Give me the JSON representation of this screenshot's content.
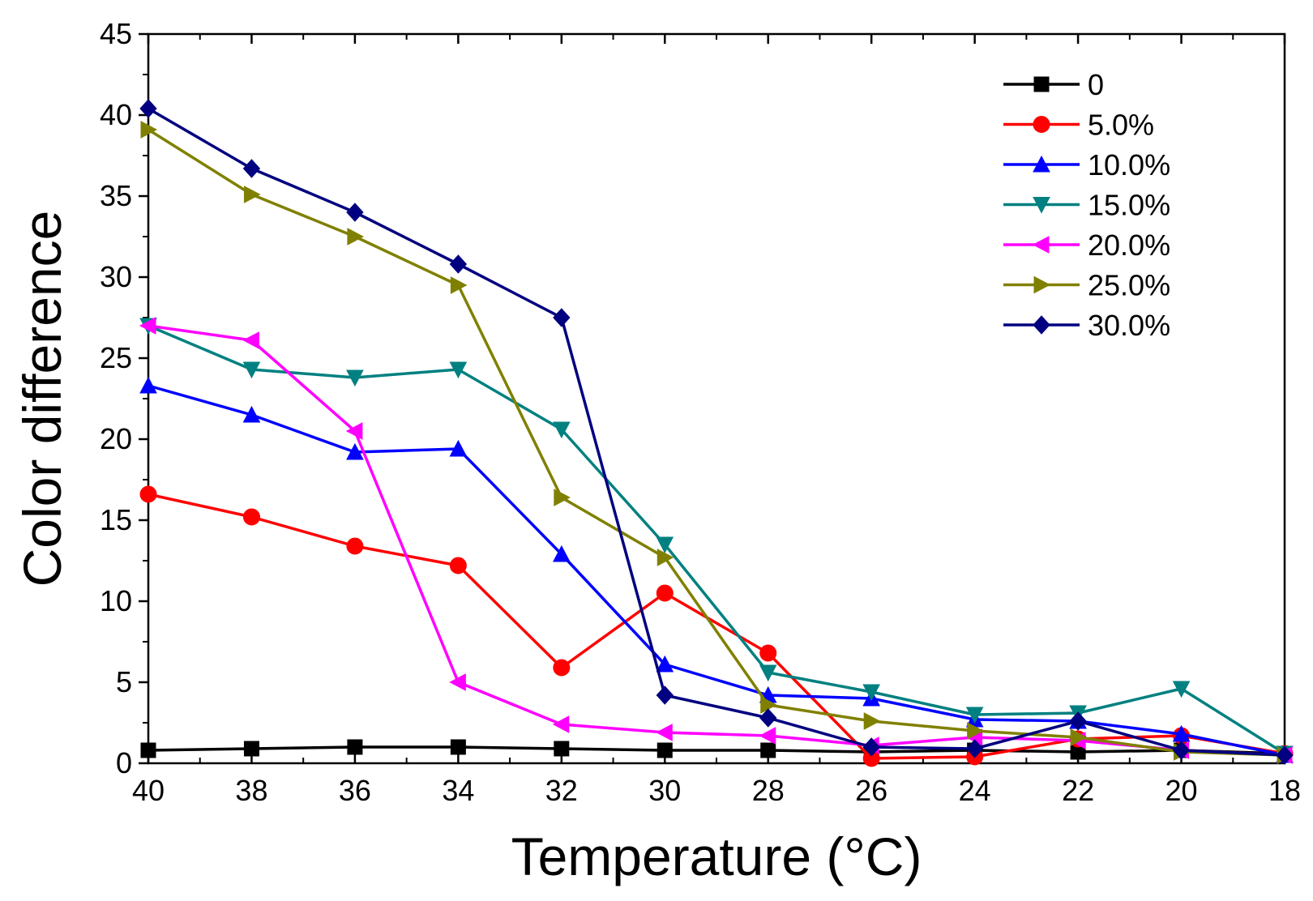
{
  "chart_data": {
    "type": "line",
    "title": "",
    "xlabel": "Temperature (°C)",
    "ylabel": "Color difference",
    "xlim": [
      40,
      18
    ],
    "ylim": [
      0,
      45
    ],
    "x_ticks": [
      40,
      38,
      36,
      34,
      32,
      30,
      28,
      26,
      24,
      22,
      20,
      18
    ],
    "y_ticks": [
      0,
      5,
      10,
      15,
      20,
      25,
      30,
      35,
      40,
      45
    ],
    "grid": false,
    "legend_position": "top-right",
    "x": [
      40,
      38,
      36,
      34,
      32,
      30,
      28,
      26,
      24,
      22,
      20,
      18
    ],
    "series": [
      {
        "name": "0",
        "color": "#000000",
        "marker": "square",
        "values": [
          0.8,
          0.9,
          1.0,
          1.0,
          0.9,
          0.8,
          0.8,
          0.7,
          0.8,
          0.7,
          0.8,
          0.6
        ]
      },
      {
        "name": "5.0%",
        "color": "#ff0000",
        "marker": "circle",
        "values": [
          16.6,
          15.2,
          13.4,
          12.2,
          5.9,
          10.5,
          6.8,
          0.3,
          0.4,
          1.5,
          1.7,
          0.6
        ]
      },
      {
        "name": "10.0%",
        "color": "#0000ff",
        "marker": "triangle-up",
        "values": [
          23.3,
          21.5,
          19.2,
          19.4,
          12.9,
          6.1,
          4.2,
          4.0,
          2.7,
          2.6,
          1.8,
          0.5
        ]
      },
      {
        "name": "15.0%",
        "color": "#008080",
        "marker": "triangle-down",
        "values": [
          27.0,
          24.3,
          23.8,
          24.3,
          20.6,
          13.5,
          5.6,
          4.4,
          3.0,
          3.1,
          4.6,
          0.6
        ]
      },
      {
        "name": "20.0%",
        "color": "#ff00ff",
        "marker": "triangle-left",
        "values": [
          27.0,
          26.1,
          20.5,
          5.0,
          2.4,
          1.9,
          1.7,
          1.1,
          1.6,
          1.4,
          0.8,
          0.5
        ]
      },
      {
        "name": "25.0%",
        "color": "#808000",
        "marker": "triangle-right",
        "values": [
          39.1,
          35.1,
          32.5,
          29.5,
          16.4,
          12.7,
          3.6,
          2.6,
          2.0,
          1.6,
          0.7,
          0.5
        ]
      },
      {
        "name": "30.0%",
        "color": "#000080",
        "marker": "diamond",
        "values": [
          40.4,
          36.7,
          34.0,
          30.8,
          27.5,
          4.2,
          2.8,
          1.0,
          0.9,
          2.6,
          0.8,
          0.5
        ]
      }
    ]
  }
}
